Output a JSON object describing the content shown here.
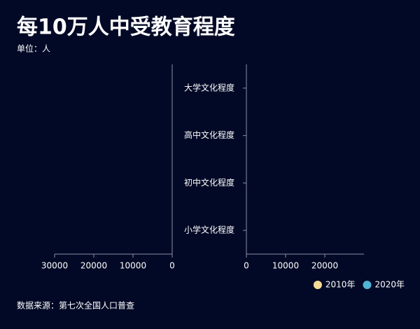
{
  "chart_data": {
    "type": "bar",
    "title": "每10万人中受教育程度",
    "subtitle": "单位：人",
    "source": "数据来源：第七次全国人口普查",
    "categories": [
      "大学文化程度",
      "高中文化程度",
      "初中文化程度",
      "小学文化程度"
    ],
    "series": [
      {
        "name": "2010年",
        "color": "#f7dc96",
        "values": [
          null,
          null,
          null,
          null
        ]
      },
      {
        "name": "2020年",
        "color": "#4fb4d6",
        "axis": "x2",
        "values": [
          null,
          null,
          null,
          null
        ]
      }
    ],
    "xlim": [
      0,
      30000
    ],
    "xticks": [
      0,
      10000,
      20000,
      30000
    ],
    "x2lim": [
      0,
      30000
    ],
    "x2ticks": [
      0,
      10000,
      20000
    ],
    "legend": "bottom-right"
  }
}
